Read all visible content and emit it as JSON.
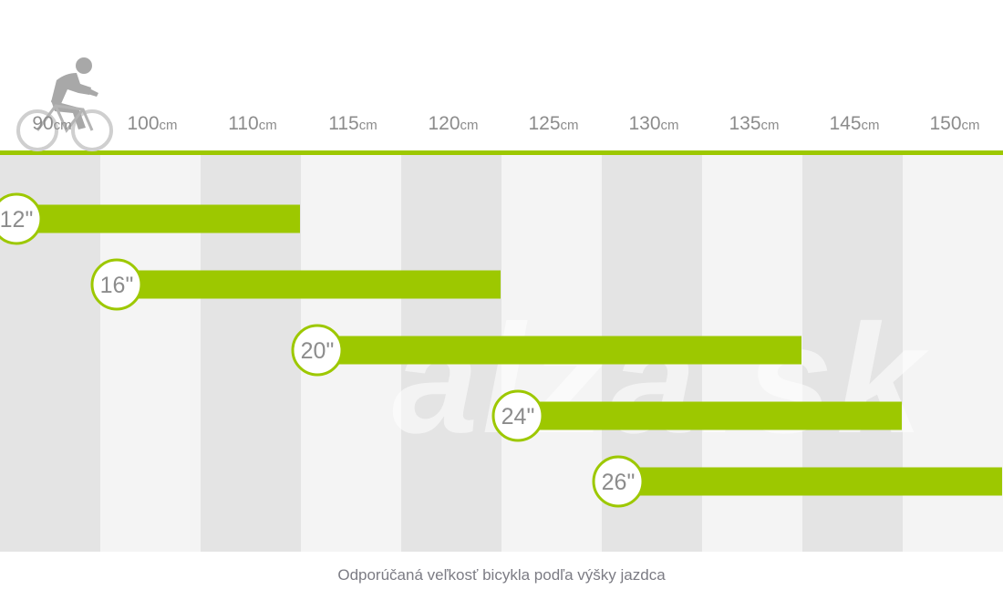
{
  "colors": {
    "accent": "#9dc800",
    "band_dark": "#e4e4e4",
    "band_light": "#f4f4f4",
    "text": "#8c8c8c"
  },
  "logo": {
    "icon": "cyclist-icon"
  },
  "watermark": {
    "text": "alza.sk"
  },
  "caption": "Odporúčaná veľkosť bicykla podľa výšky jazdca",
  "chart_data": {
    "type": "range-bar",
    "unit": "cm",
    "x": [
      "90",
      "100",
      "110",
      "115",
      "120",
      "125",
      "130",
      "135",
      "145",
      "150"
    ],
    "x_unit": "cm",
    "series": [
      {
        "name": "12\"",
        "from": "90",
        "to": "110"
      },
      {
        "name": "16\"",
        "from": "100",
        "to": "120"
      },
      {
        "name": "20\"",
        "from": "115",
        "to": "135"
      },
      {
        "name": "24\"",
        "from": "125",
        "to": "145"
      },
      {
        "name": "26\"",
        "from": "130",
        "to": "150"
      }
    ]
  }
}
